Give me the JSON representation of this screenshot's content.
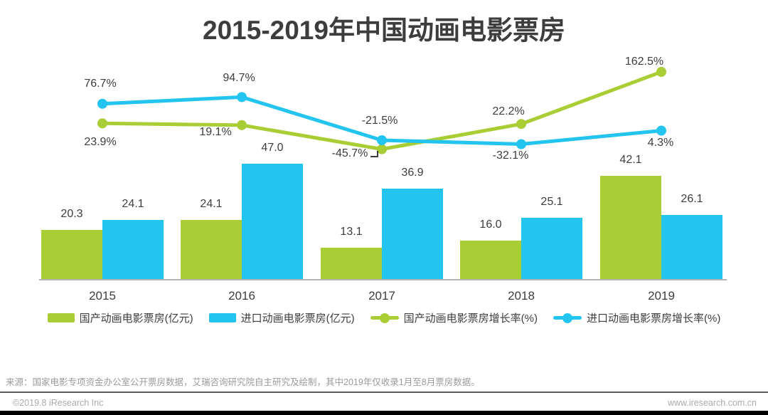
{
  "title": "2015-2019年中国动画电影票房",
  "chart_data": {
    "type": "bar",
    "subtype": "grouped bars with two growth-rate lines (combo chart)",
    "categories": [
      "2015",
      "2016",
      "2017",
      "2018",
      "2019"
    ],
    "bar_series": [
      {
        "name": "国产动画电影票房(亿元)",
        "color": "#a9ce35",
        "values": [
          20.3,
          24.1,
          13.1,
          16.0,
          42.1
        ]
      },
      {
        "name": "进口动画电影票房(亿元)",
        "color": "#23c4f0",
        "values": [
          24.1,
          47.0,
          36.9,
          25.1,
          26.1
        ]
      }
    ],
    "line_series": [
      {
        "name": "国产动画电影票房增长率(%)",
        "color": "#a9ce35",
        "values": [
          23.9,
          19.1,
          -45.7,
          22.2,
          162.5
        ],
        "labels": [
          "23.9%",
          "19.1%",
          "-45.7%",
          "22.2%",
          "162.5%"
        ]
      },
      {
        "name": "进口动画电影票房增长率(%)",
        "color": "#23c4f0",
        "values": [
          76.7,
          94.7,
          -21.5,
          -32.1,
          4.3
        ],
        "labels": [
          "76.7%",
          "94.7%",
          "-21.5%",
          "-32.1%",
          "4.3%"
        ]
      }
    ],
    "legend_position": "bottom",
    "grid": false,
    "y_axes_visible": false,
    "text_color": "#3d3d3d",
    "axis_line_color": "#b3b3b3"
  },
  "source_note": "来源：国家电影专项资金办公室公开票房数据，艾瑞咨询研究院自主研究及绘制，其中2019年仅收录1月至8月票房数据。",
  "footer": {
    "left": "©2019.8 iResearch Inc",
    "right": "www.iresearch.com.cn"
  }
}
